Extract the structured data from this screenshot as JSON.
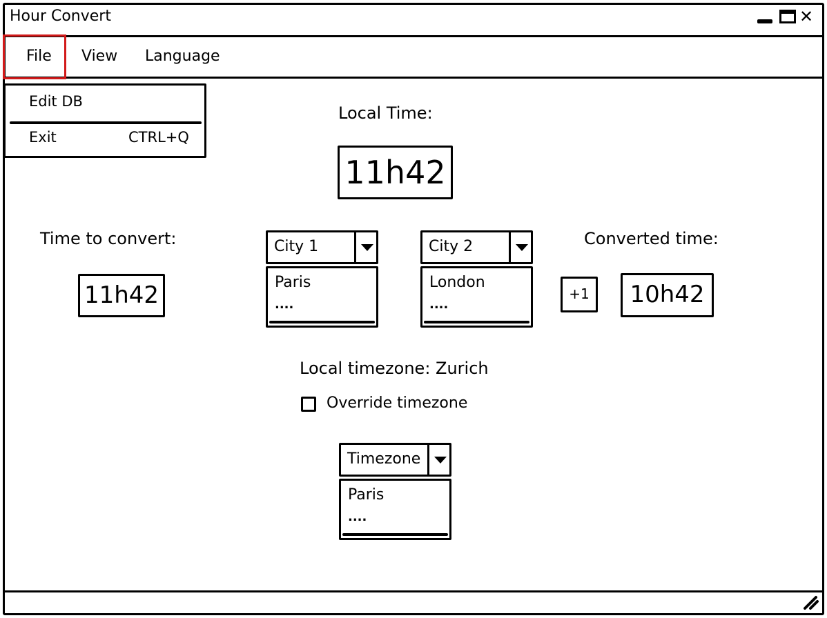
{
  "window": {
    "title": "Hour Convert"
  },
  "menu": {
    "file": "File",
    "view": "View",
    "language": "Language"
  },
  "file_menu": {
    "edit_db": "Edit DB",
    "exit": "Exit",
    "exit_shortcut": "CTRL+Q"
  },
  "local_time": {
    "label": "Local Time:",
    "value": "11h42"
  },
  "convert": {
    "label": "Time to convert:",
    "value": "11h42"
  },
  "city1": {
    "selected": "City 1",
    "options": [
      "Paris",
      "...."
    ]
  },
  "city2": {
    "selected": "City 2",
    "options": [
      "London",
      "...."
    ]
  },
  "converted": {
    "label": "Converted time:",
    "day_offset": "+1",
    "value": "10h42"
  },
  "timezone": {
    "local_label": "Local timezone: Zurich",
    "override_label": "Override timezone",
    "override_checked": false,
    "selected": "Timezone",
    "options": [
      "Paris",
      "...."
    ]
  },
  "icons": [
    "minimize-icon",
    "maximize-icon",
    "close-icon",
    "chevron-down-icon",
    "resize-grip-icon"
  ]
}
